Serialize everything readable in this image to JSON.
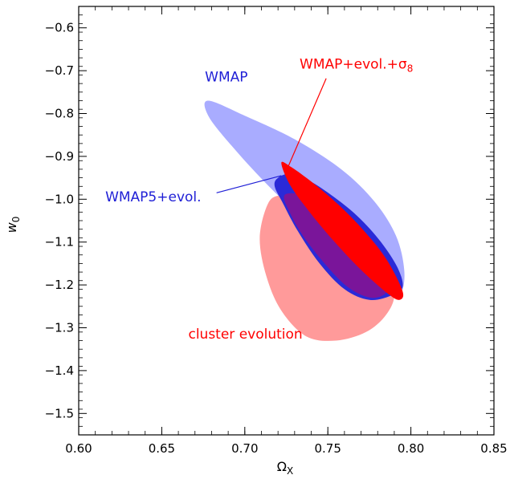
{
  "chart_data": {
    "type": "contour",
    "xlabel": "Ω",
    "xlabel_sub": "X",
    "ylabel": "w",
    "ylabel_sub": "0",
    "xlim": [
      0.6,
      0.85
    ],
    "ylim": [
      -1.55,
      -0.55
    ],
    "x_ticks": [
      {
        "value": 0.6,
        "label": "0.60"
      },
      {
        "value": 0.65,
        "label": "0.65"
      },
      {
        "value": 0.7,
        "label": "0.70"
      },
      {
        "value": 0.75,
        "label": "0.75"
      },
      {
        "value": 0.8,
        "label": "0.80"
      },
      {
        "value": 0.85,
        "label": "0.85"
      }
    ],
    "y_ticks": [
      {
        "value": -0.6,
        "label": "−0.6"
      },
      {
        "value": -0.7,
        "label": "−0.7"
      },
      {
        "value": -0.8,
        "label": "−0.8"
      },
      {
        "value": -0.9,
        "label": "−0.9"
      },
      {
        "value": -1.0,
        "label": "−1.0"
      },
      {
        "value": -1.1,
        "label": "−1.1"
      },
      {
        "value": -1.2,
        "label": "−1.2"
      },
      {
        "value": -1.3,
        "label": "−1.3"
      },
      {
        "value": -1.4,
        "label": "−1.4"
      },
      {
        "value": -1.5,
        "label": "−1.5"
      }
    ],
    "regions": [
      {
        "label": "cluster evolution",
        "color": "#ff9a9a",
        "points": [
          [
            0.714,
            -1.01
          ],
          [
            0.722,
            -0.99
          ],
          [
            0.735,
            -0.99
          ],
          [
            0.748,
            -1.01
          ],
          [
            0.76,
            -1.04
          ],
          [
            0.773,
            -1.09
          ],
          [
            0.784,
            -1.15
          ],
          [
            0.79,
            -1.22
          ],
          [
            0.785,
            -1.27
          ],
          [
            0.773,
            -1.31
          ],
          [
            0.755,
            -1.33
          ],
          [
            0.737,
            -1.32
          ],
          [
            0.722,
            -1.26
          ],
          [
            0.713,
            -1.18
          ],
          [
            0.709,
            -1.09
          ]
        ]
      },
      {
        "label": "WMAP",
        "color": "#a9acff",
        "points": [
          [
            0.678,
            -0.77
          ],
          [
            0.7,
            -0.805
          ],
          [
            0.73,
            -0.86
          ],
          [
            0.758,
            -0.93
          ],
          [
            0.778,
            -1.005
          ],
          [
            0.791,
            -1.085
          ],
          [
            0.796,
            -1.165
          ],
          [
            0.794,
            -1.22
          ],
          [
            0.786,
            -1.225
          ],
          [
            0.772,
            -1.195
          ],
          [
            0.755,
            -1.135
          ],
          [
            0.734,
            -1.045
          ],
          [
            0.712,
            -0.96
          ],
          [
            0.692,
            -0.875
          ],
          [
            0.678,
            -0.805
          ]
        ]
      },
      {
        "label": "WMAP5+evol.",
        "color": "#2a2ad8",
        "points": [
          [
            0.72,
            -0.95
          ],
          [
            0.728,
            -0.94
          ],
          [
            0.738,
            -0.955
          ],
          [
            0.752,
            -0.99
          ],
          [
            0.768,
            -1.04
          ],
          [
            0.782,
            -1.1
          ],
          [
            0.792,
            -1.16
          ],
          [
            0.795,
            -1.205
          ],
          [
            0.788,
            -1.225
          ],
          [
            0.775,
            -1.235
          ],
          [
            0.76,
            -1.21
          ],
          [
            0.745,
            -1.15
          ],
          [
            0.732,
            -1.075
          ],
          [
            0.723,
            -1.01
          ],
          [
            0.718,
            -0.97
          ]
        ]
      },
      {
        "label": "overlap",
        "color": "#7a159a",
        "points": [
          [
            0.724,
            -0.99
          ],
          [
            0.736,
            -0.99
          ],
          [
            0.75,
            -1.01
          ],
          [
            0.766,
            -1.055
          ],
          [
            0.78,
            -1.11
          ],
          [
            0.789,
            -1.17
          ],
          [
            0.786,
            -1.215
          ],
          [
            0.776,
            -1.23
          ],
          [
            0.762,
            -1.205
          ],
          [
            0.748,
            -1.15
          ],
          [
            0.735,
            -1.085
          ],
          [
            0.727,
            -1.03
          ]
        ]
      },
      {
        "label": "WMAP+evol.+σ8",
        "color": "#ff0000",
        "points": [
          [
            0.722,
            -0.915
          ],
          [
            0.728,
            -0.925
          ],
          [
            0.742,
            -0.965
          ],
          [
            0.757,
            -1.015
          ],
          [
            0.772,
            -1.075
          ],
          [
            0.786,
            -1.145
          ],
          [
            0.795,
            -1.215
          ],
          [
            0.793,
            -1.235
          ],
          [
            0.786,
            -1.22
          ],
          [
            0.77,
            -1.165
          ],
          [
            0.753,
            -1.095
          ],
          [
            0.738,
            -1.025
          ],
          [
            0.727,
            -0.965
          ]
        ]
      }
    ],
    "annotations": [
      {
        "text": "WMAP",
        "color": "#1f1fd6",
        "x": 0.676,
        "y": -0.725,
        "anchor": "start"
      },
      {
        "text": "WMAP+evol.+σ",
        "sub": "8",
        "color": "#ff0000",
        "x": 0.733,
        "y": -0.695,
        "anchor": "start",
        "line_to": [
          0.726,
          -0.925
        ],
        "line_from": [
          0.749,
          -0.718
        ]
      },
      {
        "text": "WMAP5+evol.",
        "color": "#1f1fd6",
        "x": 0.616,
        "y": -1.005,
        "anchor": "start",
        "line_from": [
          0.683,
          -0.985
        ],
        "line_to": [
          0.722,
          -0.945
        ]
      },
      {
        "text": "cluster evolution",
        "color": "#ff0000",
        "x": 0.666,
        "y": -1.325,
        "anchor": "start"
      }
    ]
  }
}
